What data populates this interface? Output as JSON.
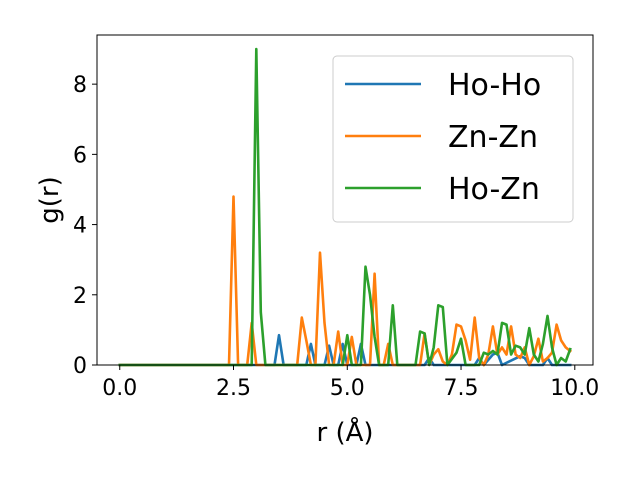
{
  "chart_data": {
    "type": "line",
    "title": "",
    "xlabel": "r (Å)",
    "ylabel": "g(r)",
    "xlim": [
      -0.5,
      10.4
    ],
    "ylim": [
      0,
      9.4
    ],
    "xticks": [
      0.0,
      2.5,
      5.0,
      7.5,
      10.0
    ],
    "xtick_labels": [
      "0.0",
      "2.5",
      "5.0",
      "7.5",
      "10.0"
    ],
    "yticks": [
      0,
      2,
      4,
      6,
      8
    ],
    "ytick_labels": [
      "0",
      "2",
      "4",
      "6",
      "8"
    ],
    "grid": false,
    "legend_position": "top-right",
    "series": [
      {
        "name": "Ho-Ho",
        "color": "#1f77b4",
        "points": [
          [
            0.0,
            0
          ],
          [
            3.4,
            0
          ],
          [
            3.5,
            0.85
          ],
          [
            3.6,
            0
          ],
          [
            4.1,
            0
          ],
          [
            4.2,
            0.6
          ],
          [
            4.3,
            0
          ],
          [
            4.5,
            0
          ],
          [
            4.6,
            0.55
          ],
          [
            4.7,
            0
          ],
          [
            4.8,
            0
          ],
          [
            4.9,
            0.6
          ],
          [
            5.0,
            0
          ],
          [
            5.2,
            0
          ],
          [
            5.3,
            0.6
          ],
          [
            5.4,
            0
          ],
          [
            6.7,
            0
          ],
          [
            6.8,
            0.2
          ],
          [
            6.9,
            0
          ],
          [
            7.8,
            0
          ],
          [
            7.9,
            0.2
          ],
          [
            8.0,
            0
          ],
          [
            8.2,
            0.3
          ],
          [
            8.3,
            0.35
          ],
          [
            8.4,
            0
          ],
          [
            8.8,
            0.25
          ],
          [
            8.9,
            0.2
          ],
          [
            9.0,
            0
          ],
          [
            9.3,
            0
          ],
          [
            9.4,
            0.2
          ],
          [
            9.5,
            0
          ],
          [
            9.9,
            0
          ]
        ]
      },
      {
        "name": "Zn-Zn",
        "color": "#ff7f0e",
        "points": [
          [
            0.0,
            0
          ],
          [
            2.4,
            0
          ],
          [
            2.5,
            4.8
          ],
          [
            2.6,
            0
          ],
          [
            2.8,
            0
          ],
          [
            2.9,
            1.2
          ],
          [
            3.0,
            0
          ],
          [
            3.9,
            0
          ],
          [
            4.0,
            1.35
          ],
          [
            4.1,
            0.7
          ],
          [
            4.2,
            0
          ],
          [
            4.3,
            0
          ],
          [
            4.4,
            3.2
          ],
          [
            4.5,
            1.2
          ],
          [
            4.6,
            0
          ],
          [
            4.7,
            0
          ],
          [
            4.8,
            0.95
          ],
          [
            4.9,
            0
          ],
          [
            5.0,
            0
          ],
          [
            5.1,
            0.8
          ],
          [
            5.2,
            0
          ],
          [
            5.5,
            0
          ],
          [
            5.6,
            2.6
          ],
          [
            5.7,
            0
          ],
          [
            5.8,
            0
          ],
          [
            5.9,
            0.6
          ],
          [
            6.0,
            0
          ],
          [
            6.6,
            0
          ],
          [
            6.7,
            0.9
          ],
          [
            6.8,
            0
          ],
          [
            6.9,
            0.3
          ],
          [
            7.0,
            0.45
          ],
          [
            7.1,
            0.1
          ],
          [
            7.2,
            0
          ],
          [
            7.3,
            0.3
          ],
          [
            7.4,
            1.15
          ],
          [
            7.5,
            1.1
          ],
          [
            7.6,
            0.7
          ],
          [
            7.7,
            0.15
          ],
          [
            7.8,
            1.35
          ],
          [
            7.9,
            0.2
          ],
          [
            8.0,
            0
          ],
          [
            8.1,
            0.3
          ],
          [
            8.2,
            1.1
          ],
          [
            8.3,
            0.3
          ],
          [
            8.4,
            0.5
          ],
          [
            8.5,
            0.3
          ],
          [
            8.6,
            1.1
          ],
          [
            8.7,
            0.3
          ],
          [
            8.8,
            0.2
          ],
          [
            8.9,
            0.5
          ],
          [
            9.0,
            0
          ],
          [
            9.1,
            0.25
          ],
          [
            9.2,
            0.75
          ],
          [
            9.3,
            0.1
          ],
          [
            9.4,
            0.2
          ],
          [
            9.5,
            0.35
          ],
          [
            9.6,
            1.15
          ],
          [
            9.7,
            0.7
          ],
          [
            9.8,
            0.5
          ],
          [
            9.9,
            0.4
          ]
        ]
      },
      {
        "name": "Ho-Zn",
        "color": "#2ca02c",
        "points": [
          [
            0.0,
            0
          ],
          [
            2.9,
            0
          ],
          [
            3.0,
            9.0
          ],
          [
            3.1,
            1.5
          ],
          [
            3.2,
            0
          ],
          [
            4.9,
            0
          ],
          [
            5.0,
            0.85
          ],
          [
            5.1,
            0
          ],
          [
            5.3,
            0
          ],
          [
            5.4,
            2.8
          ],
          [
            5.5,
            2.0
          ],
          [
            5.6,
            0.8
          ],
          [
            5.7,
            0
          ],
          [
            5.9,
            0
          ],
          [
            6.0,
            1.7
          ],
          [
            6.1,
            0
          ],
          [
            6.5,
            0
          ],
          [
            6.6,
            0.95
          ],
          [
            6.7,
            0.9
          ],
          [
            6.8,
            0
          ],
          [
            6.9,
            0.5
          ],
          [
            7.0,
            1.7
          ],
          [
            7.1,
            1.65
          ],
          [
            7.2,
            0
          ],
          [
            7.4,
            0.35
          ],
          [
            7.5,
            0.75
          ],
          [
            7.6,
            0
          ],
          [
            7.9,
            0
          ],
          [
            8.0,
            0.35
          ],
          [
            8.1,
            0.3
          ],
          [
            8.2,
            0.4
          ],
          [
            8.3,
            0.3
          ],
          [
            8.4,
            1.2
          ],
          [
            8.5,
            1.15
          ],
          [
            8.6,
            0.3
          ],
          [
            8.7,
            0.55
          ],
          [
            8.8,
            0.5
          ],
          [
            8.9,
            0.3
          ],
          [
            9.0,
            1.05
          ],
          [
            9.1,
            0.3
          ],
          [
            9.2,
            0.1
          ],
          [
            9.3,
            0.6
          ],
          [
            9.4,
            1.4
          ],
          [
            9.5,
            0.5
          ],
          [
            9.6,
            0
          ],
          [
            9.7,
            0.2
          ],
          [
            9.8,
            0.1
          ],
          [
            9.9,
            0.45
          ]
        ]
      }
    ]
  }
}
